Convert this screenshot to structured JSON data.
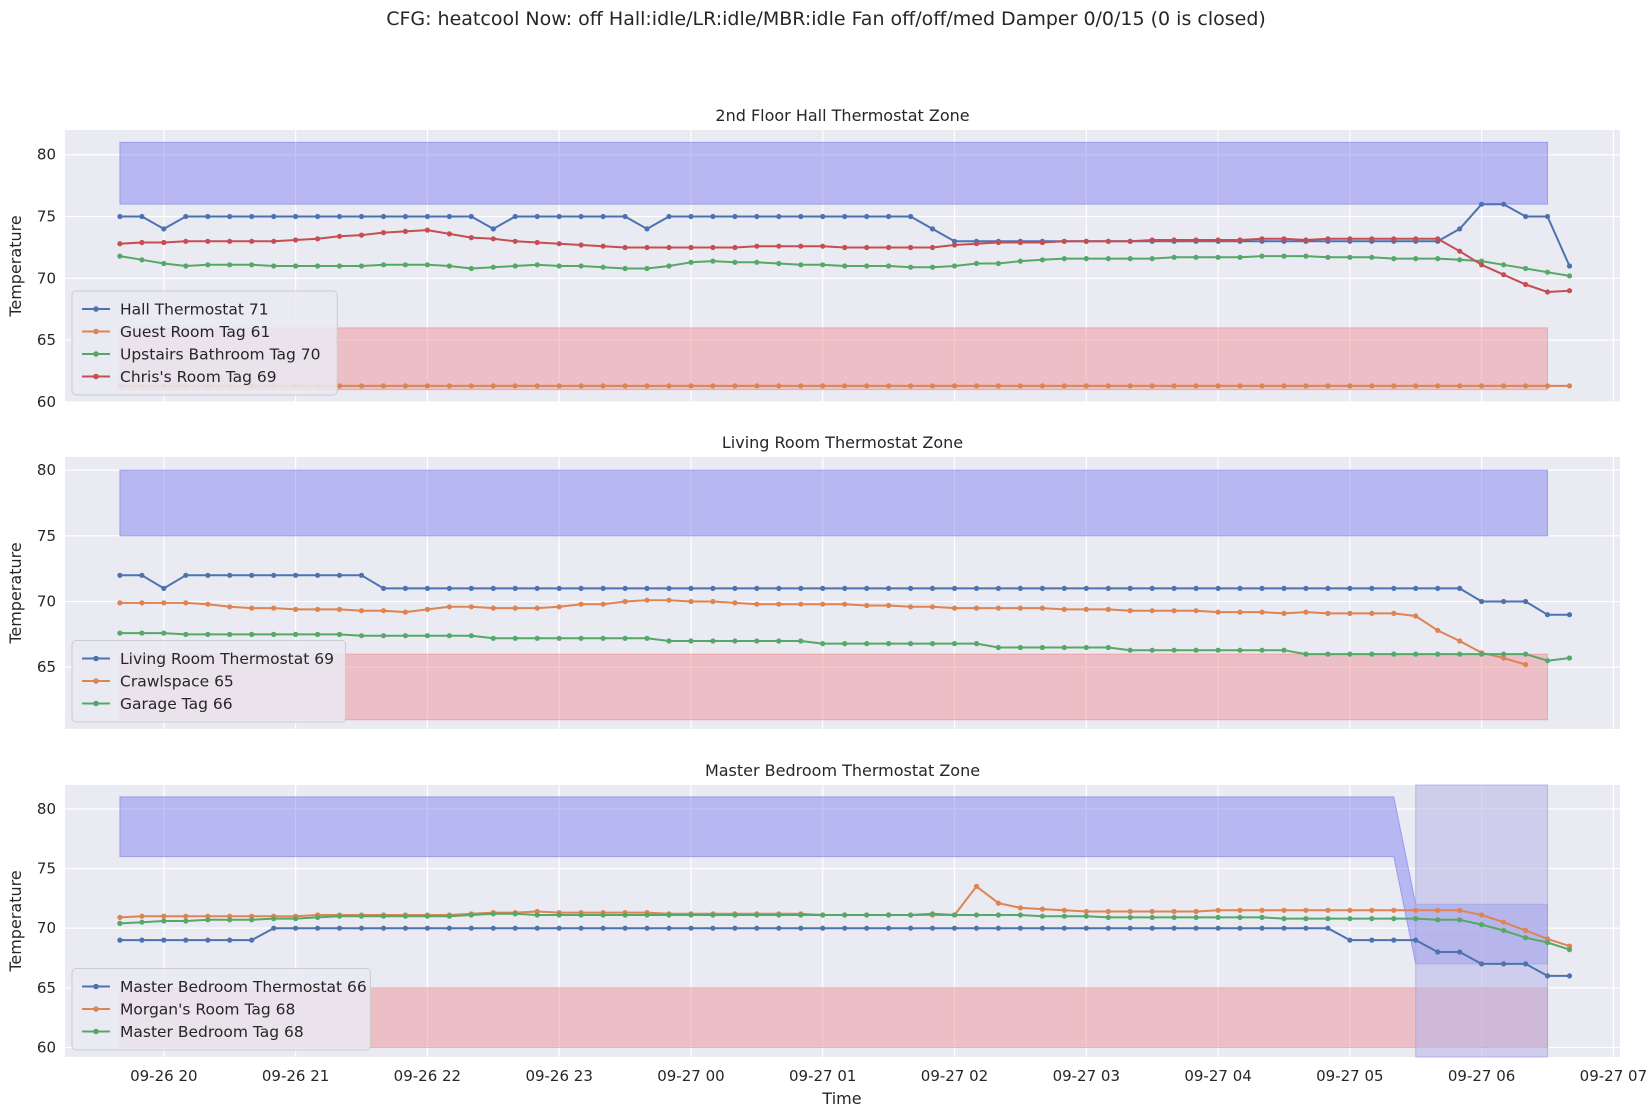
{
  "figure": {
    "suptitle": "CFG: heatcool Now: off Hall:idle/LR:idle/MBR:idle Fan off/off/med Damper 0/0/15 (0 is closed)",
    "xlabel": "Time"
  },
  "colors": {
    "axes_bg": "#eaeaf2",
    "grid": "#ffffff",
    "cool_band": "#b8b8f2",
    "heat_band": "#eebbc2",
    "series": [
      "#4c72b0",
      "#dd8452",
      "#55a868",
      "#c44e52"
    ]
  },
  "chart_data": [
    {
      "type": "line",
      "title": "2nd Floor Hall Thermostat Zone",
      "ylabel": "Temperature",
      "ylim": [
        60,
        82
      ],
      "yticks": [
        60,
        65,
        70,
        75,
        80
      ],
      "xlim": [
        "09-26 19:15",
        "09-27 07:03"
      ],
      "xticks": [
        "09-26 20",
        "09-26 21",
        "09-26 22",
        "09-26 23",
        "09-27 00",
        "09-27 01",
        "09-27 02",
        "09-27 03",
        "09-27 04",
        "09-27 05",
        "09-27 06",
        "09-27 07"
      ],
      "x_start": "09-26 19:40",
      "x_step_minutes": 10,
      "legend_position": "lower-left",
      "bands": [
        {
          "kind": "cool",
          "points": [
            [
              "09-26 19:40",
              76,
              81
            ],
            [
              "09-27 06:30",
              76,
              81
            ]
          ]
        },
        {
          "kind": "heat",
          "points": [
            [
              "09-26 19:40",
              61,
              66
            ],
            [
              "09-27 06:30",
              61,
              66
            ]
          ]
        }
      ],
      "series": [
        {
          "name": "Hall Thermostat 71",
          "values": [
            75,
            75,
            74,
            75,
            75,
            75,
            75,
            75,
            75,
            75,
            75,
            75,
            75,
            75,
            75,
            75,
            75,
            74,
            75,
            75,
            75,
            75,
            75,
            75,
            74,
            75,
            75,
            75,
            75,
            75,
            75,
            75,
            75,
            75,
            75,
            75,
            75,
            74,
            73,
            73,
            73,
            73,
            73,
            73,
            73,
            73,
            73,
            73,
            73,
            73,
            73,
            73,
            73,
            73,
            73,
            73,
            73,
            73,
            73,
            73,
            73,
            74,
            76,
            76,
            75,
            75,
            71
          ]
        },
        {
          "name": "Guest Room Tag 61",
          "values": [
            61.3,
            61.3,
            61.3,
            61.3,
            61.3,
            61.3,
            61.3,
            61.3,
            61.3,
            61.3,
            61.3,
            61.3,
            61.3,
            61.3,
            61.3,
            61.3,
            61.3,
            61.3,
            61.3,
            61.3,
            61.3,
            61.3,
            61.3,
            61.3,
            61.3,
            61.3,
            61.3,
            61.3,
            61.3,
            61.3,
            61.3,
            61.3,
            61.3,
            61.3,
            61.3,
            61.3,
            61.3,
            61.3,
            61.3,
            61.3,
            61.3,
            61.3,
            61.3,
            61.3,
            61.3,
            61.3,
            61.3,
            61.3,
            61.3,
            61.3,
            61.3,
            61.3,
            61.3,
            61.3,
            61.3,
            61.3,
            61.3,
            61.3,
            61.3,
            61.3,
            61.3,
            61.3,
            61.3,
            61.3,
            61.3,
            61.3,
            61.3
          ]
        },
        {
          "name": "Upstairs Bathroom Tag 70",
          "values": [
            71.8,
            71.5,
            71.2,
            71.0,
            71.1,
            71.1,
            71.1,
            71.0,
            71.0,
            71.0,
            71.0,
            71.0,
            71.1,
            71.1,
            71.1,
            71.0,
            70.8,
            70.9,
            71.0,
            71.1,
            71.0,
            71.0,
            70.9,
            70.8,
            70.8,
            71.0,
            71.3,
            71.4,
            71.3,
            71.3,
            71.2,
            71.1,
            71.1,
            71.0,
            71.0,
            71.0,
            70.9,
            70.9,
            71.0,
            71.2,
            71.2,
            71.4,
            71.5,
            71.6,
            71.6,
            71.6,
            71.6,
            71.6,
            71.7,
            71.7,
            71.7,
            71.7,
            71.8,
            71.8,
            71.8,
            71.7,
            71.7,
            71.7,
            71.6,
            71.6,
            71.6,
            71.5,
            71.4,
            71.1,
            70.8,
            70.5,
            70.2
          ]
        },
        {
          "name": "Chris's Room Tag 69",
          "values": [
            72.8,
            72.9,
            72.9,
            73.0,
            73.0,
            73.0,
            73.0,
            73.0,
            73.1,
            73.2,
            73.4,
            73.5,
            73.7,
            73.8,
            73.9,
            73.6,
            73.3,
            73.2,
            73.0,
            72.9,
            72.8,
            72.7,
            72.6,
            72.5,
            72.5,
            72.5,
            72.5,
            72.5,
            72.5,
            72.6,
            72.6,
            72.6,
            72.6,
            72.5,
            72.5,
            72.5,
            72.5,
            72.5,
            72.7,
            72.8,
            72.9,
            72.9,
            72.9,
            73.0,
            73.0,
            73.0,
            73.0,
            73.1,
            73.1,
            73.1,
            73.1,
            73.1,
            73.2,
            73.2,
            73.1,
            73.2,
            73.2,
            73.2,
            73.2,
            73.2,
            73.2,
            72.2,
            71.1,
            70.3,
            69.5,
            68.9,
            69.0
          ]
        }
      ]
    },
    {
      "type": "line",
      "title": "Living Room Thermostat Zone",
      "ylabel": "Temperature",
      "ylim": [
        60.3,
        81
      ],
      "yticks": [
        65,
        70,
        75,
        80
      ],
      "xlim": [
        "09-26 19:15",
        "09-27 07:03"
      ],
      "xticks": [
        "09-26 20",
        "09-26 21",
        "09-26 22",
        "09-26 23",
        "09-27 00",
        "09-27 01",
        "09-27 02",
        "09-27 03",
        "09-27 04",
        "09-27 05",
        "09-27 06",
        "09-27 07"
      ],
      "x_start": "09-26 19:40",
      "x_step_minutes": 10,
      "legend_position": "lower-left",
      "bands": [
        {
          "kind": "cool",
          "points": [
            [
              "09-26 19:40",
              75,
              80
            ],
            [
              "09-27 06:30",
              75,
              80
            ]
          ]
        },
        {
          "kind": "heat",
          "points": [
            [
              "09-26 19:40",
              61,
              66
            ],
            [
              "09-27 06:30",
              61,
              66
            ]
          ]
        }
      ],
      "series": [
        {
          "name": "Living Room Thermostat 69",
          "values": [
            72,
            72,
            71,
            72,
            72,
            72,
            72,
            72,
            72,
            72,
            72,
            72,
            71,
            71,
            71,
            71,
            71,
            71,
            71,
            71,
            71,
            71,
            71,
            71,
            71,
            71,
            71,
            71,
            71,
            71,
            71,
            71,
            71,
            71,
            71,
            71,
            71,
            71,
            71,
            71,
            71,
            71,
            71,
            71,
            71,
            71,
            71,
            71,
            71,
            71,
            71,
            71,
            71,
            71,
            71,
            71,
            71,
            71,
            71,
            71,
            71,
            71,
            70,
            70,
            70,
            69,
            69
          ]
        },
        {
          "name": "Crawlspace 65",
          "values": [
            69.9,
            69.9,
            69.9,
            69.9,
            69.8,
            69.6,
            69.5,
            69.5,
            69.4,
            69.4,
            69.4,
            69.3,
            69.3,
            69.2,
            69.4,
            69.6,
            69.6,
            69.5,
            69.5,
            69.5,
            69.6,
            69.8,
            69.8,
            70.0,
            70.1,
            70.1,
            70.0,
            70.0,
            69.9,
            69.8,
            69.8,
            69.8,
            69.8,
            69.8,
            69.7,
            69.7,
            69.6,
            69.6,
            69.5,
            69.5,
            69.5,
            69.5,
            69.5,
            69.4,
            69.4,
            69.4,
            69.3,
            69.3,
            69.3,
            69.3,
            69.2,
            69.2,
            69.2,
            69.1,
            69.2,
            69.1,
            69.1,
            69.1,
            69.1,
            68.9,
            67.8,
            67.0,
            66.1,
            65.7,
            65.2
          ]
        },
        {
          "name": "Garage Tag 66",
          "values": [
            67.6,
            67.6,
            67.6,
            67.5,
            67.5,
            67.5,
            67.5,
            67.5,
            67.5,
            67.5,
            67.5,
            67.4,
            67.4,
            67.4,
            67.4,
            67.4,
            67.4,
            67.2,
            67.2,
            67.2,
            67.2,
            67.2,
            67.2,
            67.2,
            67.2,
            67.0,
            67.0,
            67.0,
            67.0,
            67.0,
            67.0,
            67.0,
            66.8,
            66.8,
            66.8,
            66.8,
            66.8,
            66.8,
            66.8,
            66.8,
            66.5,
            66.5,
            66.5,
            66.5,
            66.5,
            66.5,
            66.3,
            66.3,
            66.3,
            66.3,
            66.3,
            66.3,
            66.3,
            66.3,
            66.0,
            66.0,
            66.0,
            66.0,
            66.0,
            66.0,
            66.0,
            66.0,
            66.0,
            66.0,
            66.0,
            65.5,
            65.7
          ]
        }
      ]
    },
    {
      "type": "line",
      "title": "Master Bedroom Thermostat Zone",
      "ylabel": "Temperature",
      "ylim": [
        59.2,
        82
      ],
      "yticks": [
        60,
        65,
        70,
        75,
        80
      ],
      "xlim": [
        "09-26 19:15",
        "09-27 07:03"
      ],
      "xticks": [
        "09-26 20",
        "09-26 21",
        "09-26 22",
        "09-26 23",
        "09-27 00",
        "09-27 01",
        "09-27 02",
        "09-27 03",
        "09-27 04",
        "09-27 05",
        "09-27 06",
        "09-27 07"
      ],
      "x_start": "09-26 19:40",
      "x_step_minutes": 10,
      "legend_position": "lower-left",
      "bands": [
        {
          "kind": "cool",
          "points": [
            [
              "09-26 19:40",
              76,
              81
            ],
            [
              "09-27 05:20",
              76,
              81
            ],
            [
              "09-27 05:30",
              67,
              72
            ],
            [
              "09-27 06:30",
              67,
              72
            ]
          ]
        },
        {
          "kind": "heat",
          "points": [
            [
              "09-26 19:40",
              60,
              65
            ],
            [
              "09-27 06:30",
              60,
              65
            ]
          ]
        },
        {
          "kind": "vspan",
          "from": "09-27 05:30",
          "to": "09-27 06:30"
        }
      ],
      "series": [
        {
          "name": "Master Bedroom Thermostat 66",
          "values": [
            69,
            69,
            69,
            69,
            69,
            69,
            69,
            70,
            70,
            70,
            70,
            70,
            70,
            70,
            70,
            70,
            70,
            70,
            70,
            70,
            70,
            70,
            70,
            70,
            70,
            70,
            70,
            70,
            70,
            70,
            70,
            70,
            70,
            70,
            70,
            70,
            70,
            70,
            70,
            70,
            70,
            70,
            70,
            70,
            70,
            70,
            70,
            70,
            70,
            70,
            70,
            70,
            70,
            70,
            70,
            70,
            69,
            69,
            69,
            69,
            68,
            68,
            67,
            67,
            67,
            66,
            66
          ]
        },
        {
          "name": "Morgan's Room Tag 68",
          "values": [
            70.9,
            71.0,
            71.0,
            71.0,
            71.0,
            71.0,
            71.0,
            71.0,
            71.0,
            71.1,
            71.1,
            71.1,
            71.1,
            71.1,
            71.1,
            71.1,
            71.2,
            71.3,
            71.3,
            71.4,
            71.3,
            71.3,
            71.3,
            71.3,
            71.3,
            71.2,
            71.2,
            71.2,
            71.2,
            71.2,
            71.2,
            71.2,
            71.1,
            71.1,
            71.1,
            71.1,
            71.1,
            71.1,
            71.1,
            73.5,
            72.1,
            71.7,
            71.6,
            71.5,
            71.4,
            71.4,
            71.4,
            71.4,
            71.4,
            71.4,
            71.5,
            71.5,
            71.5,
            71.5,
            71.5,
            71.5,
            71.5,
            71.5,
            71.5,
            71.5,
            71.5,
            71.5,
            71.1,
            70.5,
            69.8,
            69.1,
            68.5
          ]
        },
        {
          "name": "Master Bedroom Tag 68",
          "values": [
            70.4,
            70.5,
            70.6,
            70.6,
            70.7,
            70.7,
            70.7,
            70.8,
            70.8,
            70.9,
            71.0,
            71.0,
            71.0,
            71.0,
            71.0,
            71.0,
            71.1,
            71.2,
            71.2,
            71.1,
            71.1,
            71.1,
            71.1,
            71.1,
            71.1,
            71.1,
            71.1,
            71.1,
            71.1,
            71.1,
            71.1,
            71.1,
            71.1,
            71.1,
            71.1,
            71.1,
            71.1,
            71.2,
            71.1,
            71.1,
            71.1,
            71.1,
            71.0,
            71.0,
            71.0,
            70.9,
            70.9,
            70.9,
            70.9,
            70.9,
            70.9,
            70.9,
            70.9,
            70.8,
            70.8,
            70.8,
            70.8,
            70.8,
            70.8,
            70.8,
            70.7,
            70.7,
            70.3,
            69.8,
            69.2,
            68.8,
            68.2
          ]
        }
      ]
    }
  ]
}
